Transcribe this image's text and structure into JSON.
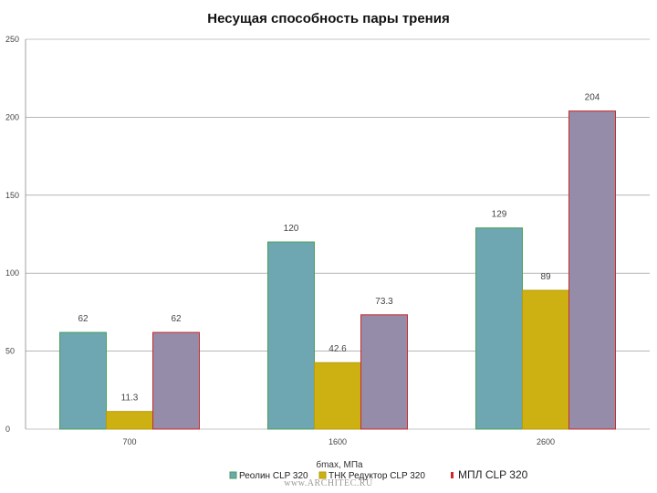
{
  "chart_data": {
    "type": "bar",
    "title": "Несущая способность пары трения",
    "xlabel": "бmax, МПа",
    "ylabel": "",
    "categories": [
      "700",
      "1600",
      "2600"
    ],
    "ylim": [
      0,
      250
    ],
    "yticks": [
      "0",
      "50",
      "100",
      "150",
      "200",
      "250"
    ],
    "grid": true,
    "legend_position": "bottom",
    "series": [
      {
        "name": "Реолин CLP 320",
        "values": [
          62,
          120,
          129
        ],
        "labels": [
          "62",
          "120",
          "129"
        ],
        "color": "#6ea6b1",
        "border": "#4aa05a"
      },
      {
        "name": "ТНК Редуктор CLP 320",
        "values": [
          11.3,
          42.6,
          89
        ],
        "labels": [
          "11.3",
          "42.6",
          "89"
        ],
        "color": "#cdb112",
        "border": "#b69a0c"
      },
      {
        "name": "МПЛ CLP 320",
        "values": [
          62,
          73.3,
          204
        ],
        "labels": [
          "62",
          "73.3",
          "204"
        ],
        "color": "#948ca8",
        "border": "#cc2a2a"
      }
    ]
  },
  "watermark": "www.ARCHITEC.RU"
}
